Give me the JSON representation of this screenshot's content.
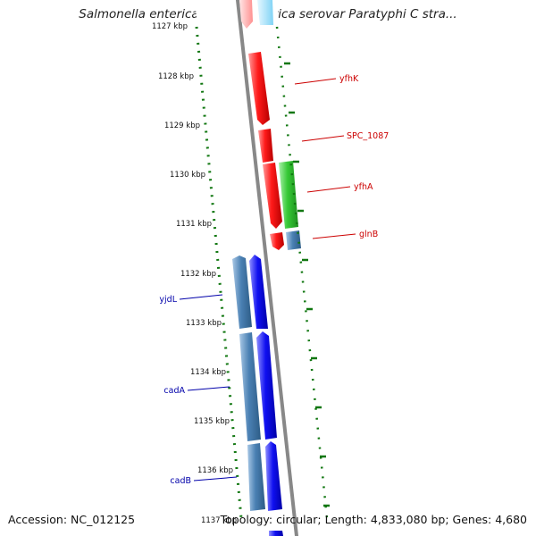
{
  "title": "Salmonella enterica subsp. enterica serovar Paratyphi C stra...",
  "footer": {
    "accession": "Accession: NC_012125",
    "topology": "Topology: circular; Length: 4,833,080 bp; Genes: 4,680"
  },
  "colors": {
    "backbone": "#888888",
    "tick_dots": "#117711",
    "red_gene": "#ee1111",
    "green_gene": "#33cc33",
    "steel_gene": "#4a7fb0",
    "blue_gene": "#1111ee",
    "label_red": "#cc0000",
    "label_blue": "#0000aa"
  },
  "ticks": [
    {
      "label": "1127 kbp"
    },
    {
      "label": "1128 kbp"
    },
    {
      "label": "1129 kbp"
    },
    {
      "label": "1130 kbp"
    },
    {
      "label": "1131 kbp"
    },
    {
      "label": "1132 kbp"
    },
    {
      "label": "1133 kbp"
    },
    {
      "label": "1134 kbp"
    },
    {
      "label": "1135 kbp"
    },
    {
      "label": "1136 kbp"
    },
    {
      "label": "1137 kbp"
    }
  ],
  "right_labels": [
    {
      "text": "yfhK"
    },
    {
      "text": "SPC_1087"
    },
    {
      "text": "yfhA"
    },
    {
      "text": "glnB"
    }
  ],
  "left_labels": [
    {
      "text": "yjdL"
    },
    {
      "text": "cadA"
    },
    {
      "text": "cadB"
    }
  ]
}
